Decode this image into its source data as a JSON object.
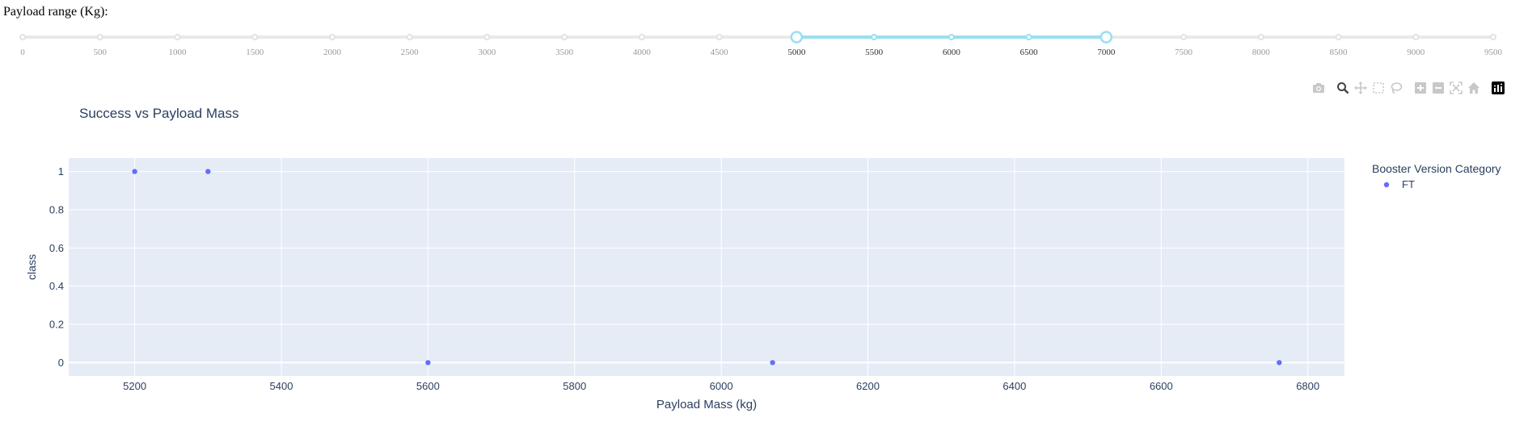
{
  "slider": {
    "label": "Payload range (Kg):",
    "marks": [
      "0",
      "500",
      "1000",
      "1500",
      "2000",
      "2500",
      "3000",
      "3500",
      "4000",
      "4500",
      "5000",
      "5500",
      "6000",
      "6500",
      "7000",
      "7500",
      "8000",
      "8500",
      "9000",
      "9500"
    ],
    "min": 0,
    "max": 9500,
    "range_low": 5000,
    "range_high": 7000,
    "active_color": "#99dff0",
    "track_color": "#e9e9e9"
  },
  "modebar": {
    "icons": [
      "camera-icon",
      "zoom-icon",
      "pan-icon",
      "box-select-icon",
      "lasso-select-icon",
      "zoom-in-icon",
      "zoom-out-icon",
      "autoscale-icon",
      "reset-axes-icon",
      "plotly-logo-icon"
    ]
  },
  "chart_data": {
    "type": "scatter",
    "title": "Success vs Payload Mass",
    "xlabel": "Payload Mass (kg)",
    "ylabel": "class",
    "xlim": [
      5110,
      6850
    ],
    "ylim": [
      -0.07,
      1.07
    ],
    "x_ticks": [
      "5200",
      "5400",
      "5600",
      "5800",
      "6000",
      "6200",
      "6400",
      "6600",
      "6800"
    ],
    "y_ticks": [
      "0",
      "0.2",
      "0.4",
      "0.6",
      "0.8",
      "1"
    ],
    "legend_title": "Booster Version Category",
    "legend_position": "right",
    "grid": true,
    "plot_bg": "#e5ecf6",
    "series": [
      {
        "name": "FT",
        "color": "#636efa",
        "points": [
          {
            "x": 5200,
            "y": 1
          },
          {
            "x": 5300,
            "y": 1
          },
          {
            "x": 5600,
            "y": 0
          },
          {
            "x": 6070,
            "y": 0
          },
          {
            "x": 6761,
            "y": 0
          }
        ]
      }
    ]
  }
}
